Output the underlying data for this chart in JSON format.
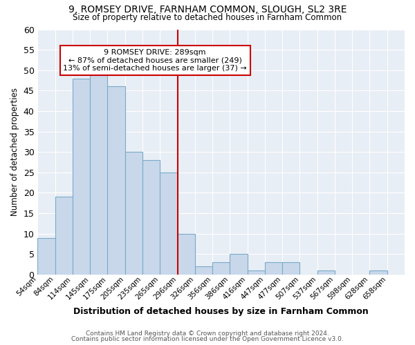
{
  "title": "9, ROMSEY DRIVE, FARNHAM COMMON, SLOUGH, SL2 3RE",
  "subtitle": "Size of property relative to detached houses in Farnham Common",
  "xlabel": "Distribution of detached houses by size in Farnham Common",
  "ylabel": "Number of detached properties",
  "bin_labels": [
    "54sqm",
    "84sqm",
    "114sqm",
    "145sqm",
    "175sqm",
    "205sqm",
    "235sqm",
    "265sqm",
    "296sqm",
    "326sqm",
    "356sqm",
    "386sqm",
    "416sqm",
    "447sqm",
    "477sqm",
    "507sqm",
    "537sqm",
    "567sqm",
    "598sqm",
    "628sqm",
    "658sqm"
  ],
  "bar_heights": [
    9,
    19,
    48,
    50,
    46,
    30,
    28,
    25,
    10,
    2,
    3,
    5,
    1,
    3,
    3,
    0,
    1,
    0,
    0,
    1,
    0
  ],
  "bar_color": "#c8d8ea",
  "bar_edge_color": "#7aaac8",
  "vline_x_index": 8,
  "vline_color": "#cc0000",
  "ylim": [
    0,
    60
  ],
  "yticks": [
    0,
    5,
    10,
    15,
    20,
    25,
    30,
    35,
    40,
    45,
    50,
    55,
    60
  ],
  "annotation_text": "9 ROMSEY DRIVE: 289sqm\n← 87% of detached houses are smaller (249)\n13% of semi-detached houses are larger (37) →",
  "annotation_box_color": "#ffffff",
  "annotation_box_edge": "#cc0000",
  "footer1": "Contains HM Land Registry data © Crown copyright and database right 2024.",
  "footer2": "Contains public sector information licensed under the Open Government Licence v3.0.",
  "plot_bg_color": "#e8eef5",
  "grid_color": "#ffffff"
}
